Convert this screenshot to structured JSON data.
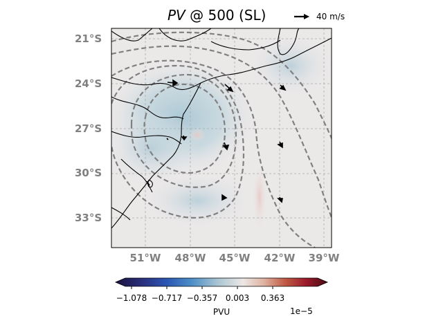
{
  "title": {
    "variable": "PV",
    "rest": " @ 500 (SL)"
  },
  "quiver_key": {
    "label": "40 m/s"
  },
  "map": {
    "type": "contour-map",
    "region": "Southern Brazil / South Atlantic",
    "lat_labels": [
      "21°S",
      "24°S",
      "27°S",
      "30°S",
      "33°S"
    ],
    "lon_labels": [
      "51°W",
      "48°W",
      "45°W",
      "42°W",
      "39°W"
    ],
    "gridlines": true,
    "features": [
      "filled PV contours",
      "dashed gray contour lines",
      "wind vectors",
      "coastlines",
      "state borders"
    ],
    "colors": {
      "negative_max": "#2a1a4a",
      "neutral": "#ece8e8",
      "positive_max": "#5a0a1a",
      "contour_line": "#808080",
      "coast": "#000000"
    }
  },
  "colorbar": {
    "label": "PVU",
    "exponent": "1e−5",
    "ticks": [
      "−1.078",
      "−0.717",
      "−0.357",
      "0.003",
      "0.363"
    ]
  }
}
